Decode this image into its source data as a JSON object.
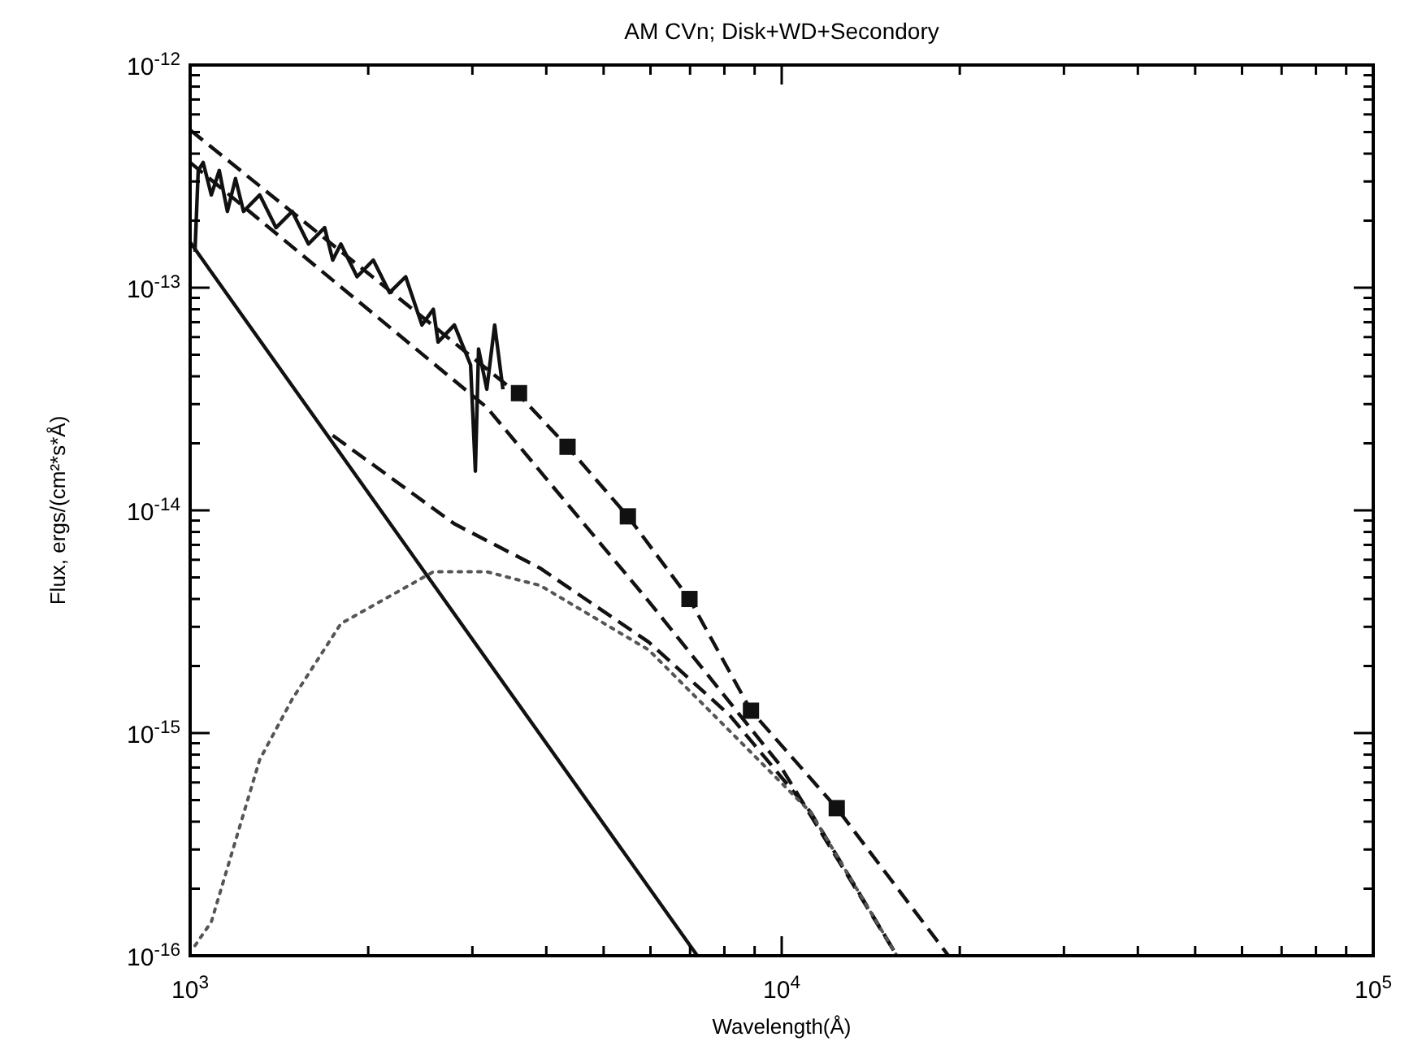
{
  "chart_data": {
    "type": "line",
    "title": "AM CVn; Disk+WD+Secondory",
    "xlabel": "Wavelength(Å)",
    "ylabel": "Flux, ergs/(cm²*s*Å)",
    "log": "xy",
    "xlim": [
      1000,
      100000
    ],
    "ylim": [
      1e-16,
      1e-12
    ],
    "xticks": [
      {
        "value": 1000,
        "label": "10$^{3}$"
      },
      {
        "value": 2000,
        "label": null
      },
      {
        "value": 3000,
        "label": null
      },
      {
        "value": 4000,
        "label": null
      },
      {
        "value": 5000,
        "label": null
      },
      {
        "value": 6000,
        "label": null
      },
      {
        "value": 7000,
        "label": null
      },
      {
        "value": 8000,
        "label": null
      },
      {
        "value": 9000,
        "label": null
      },
      {
        "value": 10000,
        "label": "10$^{4}$"
      },
      {
        "value": 20000,
        "label": null
      },
      {
        "value": 30000,
        "label": null
      },
      {
        "value": 40000,
        "label": null
      },
      {
        "value": 50000,
        "label": null
      },
      {
        "value": 60000,
        "label": null
      },
      {
        "value": 70000,
        "label": null
      },
      {
        "value": 80000,
        "label": null
      },
      {
        "value": 90000,
        "label": null
      },
      {
        "value": 100000,
        "label": "10$^{5}$"
      }
    ],
    "yticks": [
      {
        "value": 1e-16,
        "label": "10$^{-16}$"
      },
      {
        "value": 2e-16,
        "label": null
      },
      {
        "value": 3e-16,
        "label": null
      },
      {
        "value": 4e-16,
        "label": null
      },
      {
        "value": 5e-16,
        "label": null
      },
      {
        "value": 6e-16,
        "label": null
      },
      {
        "value": 7e-16,
        "label": null
      },
      {
        "value": 8e-16,
        "label": null
      },
      {
        "value": 9e-16,
        "label": null
      },
      {
        "value": 1e-15,
        "label": "10$^{-15}$"
      },
      {
        "value": 2e-15,
        "label": null
      },
      {
        "value": 3e-15,
        "label": null
      },
      {
        "value": 4e-15,
        "label": null
      },
      {
        "value": 5e-15,
        "label": null
      },
      {
        "value": 6e-15,
        "label": null
      },
      {
        "value": 7e-15,
        "label": null
      },
      {
        "value": 8e-15,
        "label": null
      },
      {
        "value": 9e-15,
        "label": null
      },
      {
        "value": 1e-14,
        "label": "10$^{-14}$"
      },
      {
        "value": 2e-14,
        "label": null
      },
      {
        "value": 3e-14,
        "label": null
      },
      {
        "value": 4e-14,
        "label": null
      },
      {
        "value": 5e-14,
        "label": null
      },
      {
        "value": 6e-14,
        "label": null
      },
      {
        "value": 7e-14,
        "label": null
      },
      {
        "value": 8e-14,
        "label": null
      },
      {
        "value": 9e-14,
        "label": null
      },
      {
        "value": 1e-13,
        "label": "10$^{-13}$"
      },
      {
        "value": 2e-13,
        "label": null
      },
      {
        "value": 3e-13,
        "label": null
      },
      {
        "value": 4e-13,
        "label": null
      },
      {
        "value": 5e-13,
        "label": null
      },
      {
        "value": 6e-13,
        "label": null
      },
      {
        "value": 7e-13,
        "label": null
      },
      {
        "value": 8e-13,
        "label": null
      },
      {
        "value": 9e-13,
        "label": null
      },
      {
        "value": 1e-12,
        "label": "10$^{-12}$"
      }
    ],
    "series": [
      {
        "color": "#111111",
        "line_style": "solid",
        "x": [
          1019,
          1032,
          1052,
          1086,
          1120,
          1156,
          1193,
          1231,
          1311,
          1397,
          1488,
          1585,
          1688,
          1742,
          1798,
          1915,
          2040,
          2173,
          2314,
          2465,
          2577,
          2625,
          2797,
          2979,
          3035,
          3073,
          3173,
          3272,
          3379
        ],
        "values": [
          1.45e-13,
          3.36e-13,
          3.65e-13,
          2.61e-13,
          3.36e-13,
          2.2e-13,
          3.09e-13,
          2.2e-13,
          2.61e-13,
          1.86e-13,
          2.2e-13,
          1.57e-13,
          1.86e-13,
          1.33e-13,
          1.57e-13,
          1.12e-13,
          1.33e-13,
          9.5e-14,
          1.12e-13,
          6.8e-14,
          8e-14,
          5.7e-14,
          6.8e-14,
          4.5e-14,
          1.5e-14,
          5.3e-14,
          3.5e-14,
          6.8e-14,
          3.5e-14
        ]
      },
      {
        "color": "#111111",
        "line_style": "solid",
        "x": [
          1000,
          7200
        ],
        "values": [
          1.6e-13,
          1e-16
        ]
      },
      {
        "color": "#111111",
        "line_style": "dashed",
        "x": [
          1000,
          3597,
          4345,
          5495,
          6984,
          8873,
          12390,
          19140
        ],
        "values": [
          5.11e-13,
          3.3e-14,
          1.93e-14,
          9.4e-15,
          4e-15,
          1.26e-15,
          4.6e-16,
          1e-16
        ]
      },
      {
        "color": "#111111",
        "line_style": "dashed",
        "x": [
          1000,
          3173,
          5961,
          9886,
          15660
        ],
        "values": [
          3.65e-13,
          2.9e-14,
          3.9e-15,
          7.3e-16,
          1e-16
        ]
      },
      {
        "color": "#111111",
        "line_style": "dashed",
        "x": [
          1742,
          2797,
          3906,
          5961,
          8172,
          11200,
          15660
        ],
        "values": [
          2.17e-14,
          8.7e-15,
          5.5e-15,
          2.56e-15,
          1.2e-15,
          4.4e-16,
          1e-16
        ]
      },
      {
        "color": "#555555",
        "line_style": "dotted",
        "x": [
          1019,
          1086,
          1311,
          1488,
          1798,
          2577,
          3173,
          3906,
          5961,
          8172,
          11200,
          15660
        ],
        "values": [
          1.11e-16,
          1.42e-16,
          7.6e-16,
          1.42e-15,
          3.1e-15,
          5.3e-15,
          5.3e-15,
          4.6e-15,
          2.36e-15,
          1.02e-15,
          4.4e-16,
          1e-16
        ]
      },
      {
        "type": "scatter",
        "color": "#111111",
        "marker": "square",
        "x": [
          3597,
          4345,
          5495,
          6984,
          8873,
          12390
        ],
        "values": [
          3.36e-14,
          1.93e-14,
          9.4e-15,
          4e-15,
          1.26e-15,
          4.6e-16
        ]
      }
    ]
  }
}
